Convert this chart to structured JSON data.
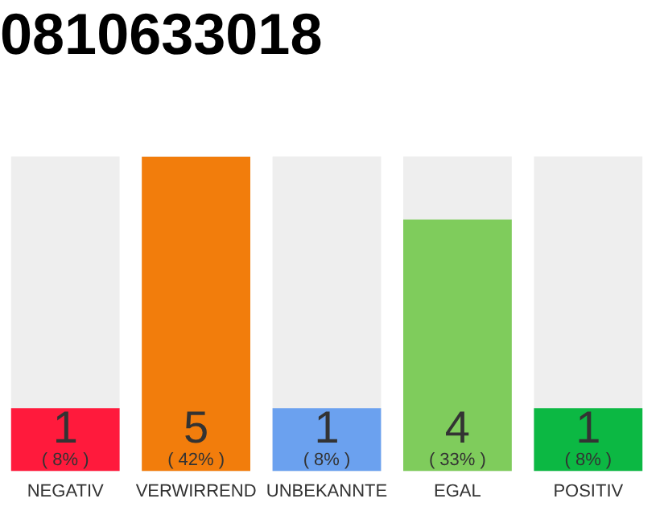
{
  "chart_data": {
    "type": "bar",
    "title": "0810633018",
    "categories": [
      "NEGATIV",
      "VERWIRREND",
      "UNBEKANNTE",
      "EGAL",
      "POSITIV"
    ],
    "values": [
      1,
      5,
      1,
      4,
      1
    ],
    "colors": [
      "#ff1a3c",
      "#f27d0c",
      "#6ba1ef",
      "#7fcc5c",
      "#0cb843"
    ],
    "value_labels": [
      "1\n( 8% )",
      "5\n( 42% )",
      "1\n( 8% )",
      "4\n( 33% )",
      "1\n( 8% )"
    ],
    "ylim": [
      0,
      5
    ],
    "tick_labels": "x",
    "grid": false,
    "legend": false
  }
}
